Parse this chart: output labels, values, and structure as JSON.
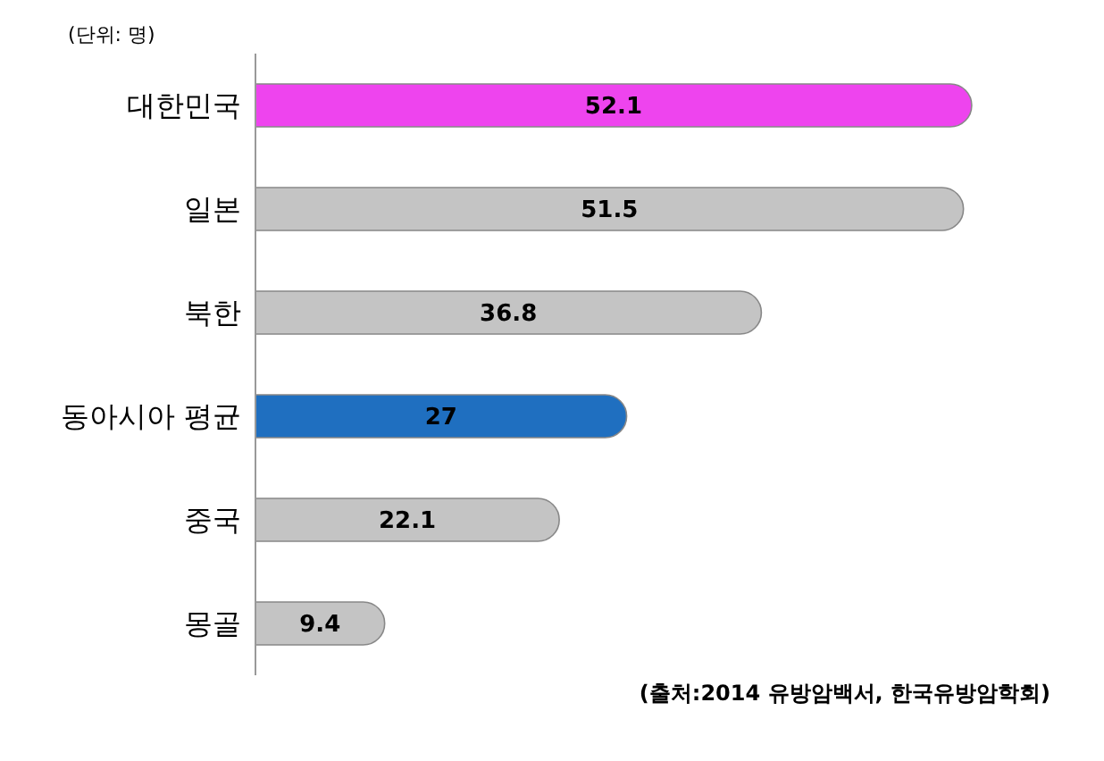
{
  "chart_data": {
    "type": "bar",
    "orientation": "horizontal",
    "categories": [
      "대한민국",
      "일본",
      "북한",
      "동아시아 평균",
      "중국",
      "몽골"
    ],
    "values": [
      52.1,
      51.5,
      36.8,
      27,
      22.1,
      9.4
    ],
    "colors": [
      "#ee44ee",
      "#c4c4c4",
      "#c4c4c4",
      "#1f6fc0",
      "#c4c4c4",
      "#c4c4c4"
    ],
    "data_labels": true,
    "annotations": [
      "(단위: 명)",
      "(출처:2014 유방암백서, 한국유방암학회)"
    ]
  }
}
